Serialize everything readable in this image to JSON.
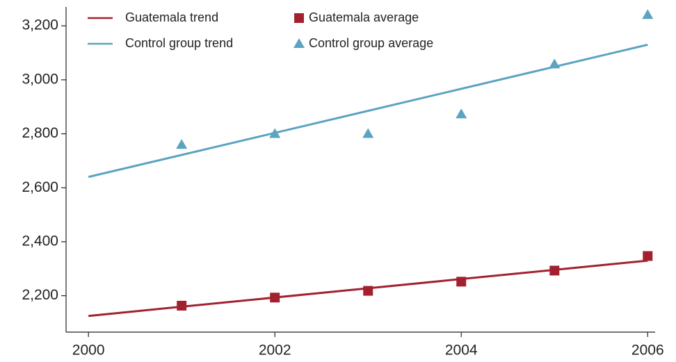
{
  "chart_data": {
    "type": "line",
    "xlim": [
      1999.76,
      2006.08
    ],
    "ylim": [
      2065,
      3270
    ],
    "xticks": [
      2000,
      2002,
      2004,
      2006
    ],
    "yticks": [
      {
        "value": 2200,
        "label": "2,200"
      },
      {
        "value": 2400,
        "label": "2,400"
      },
      {
        "value": 2600,
        "label": "2,600"
      },
      {
        "value": 2800,
        "label": "2,800"
      },
      {
        "value": 3000,
        "label": "3,000"
      },
      {
        "value": 3200,
        "label": "3,200"
      }
    ],
    "series": [
      {
        "name": "Guatemala trend",
        "color": "#a3212f",
        "style": "line",
        "x": [
          2000,
          2006
        ],
        "values": [
          2125,
          2330
        ]
      },
      {
        "name": "Guatemala average",
        "color": "#a3212f",
        "style": "square",
        "x": [
          2001,
          2002,
          2003,
          2004,
          2005,
          2006
        ],
        "values": [
          2163,
          2193,
          2218,
          2252,
          2293,
          2347
        ]
      },
      {
        "name": "Control group trend",
        "color": "#5ba3c0",
        "style": "line",
        "x": [
          2000,
          2006
        ],
        "values": [
          2640,
          3130
        ]
      },
      {
        "name": "Control group average",
        "color": "#5ba3c0",
        "style": "triangle",
        "x": [
          2001,
          2002,
          2003,
          2004,
          2005,
          2006
        ],
        "values": [
          2760,
          2800,
          2800,
          2873,
          3058,
          3241
        ]
      }
    ]
  }
}
